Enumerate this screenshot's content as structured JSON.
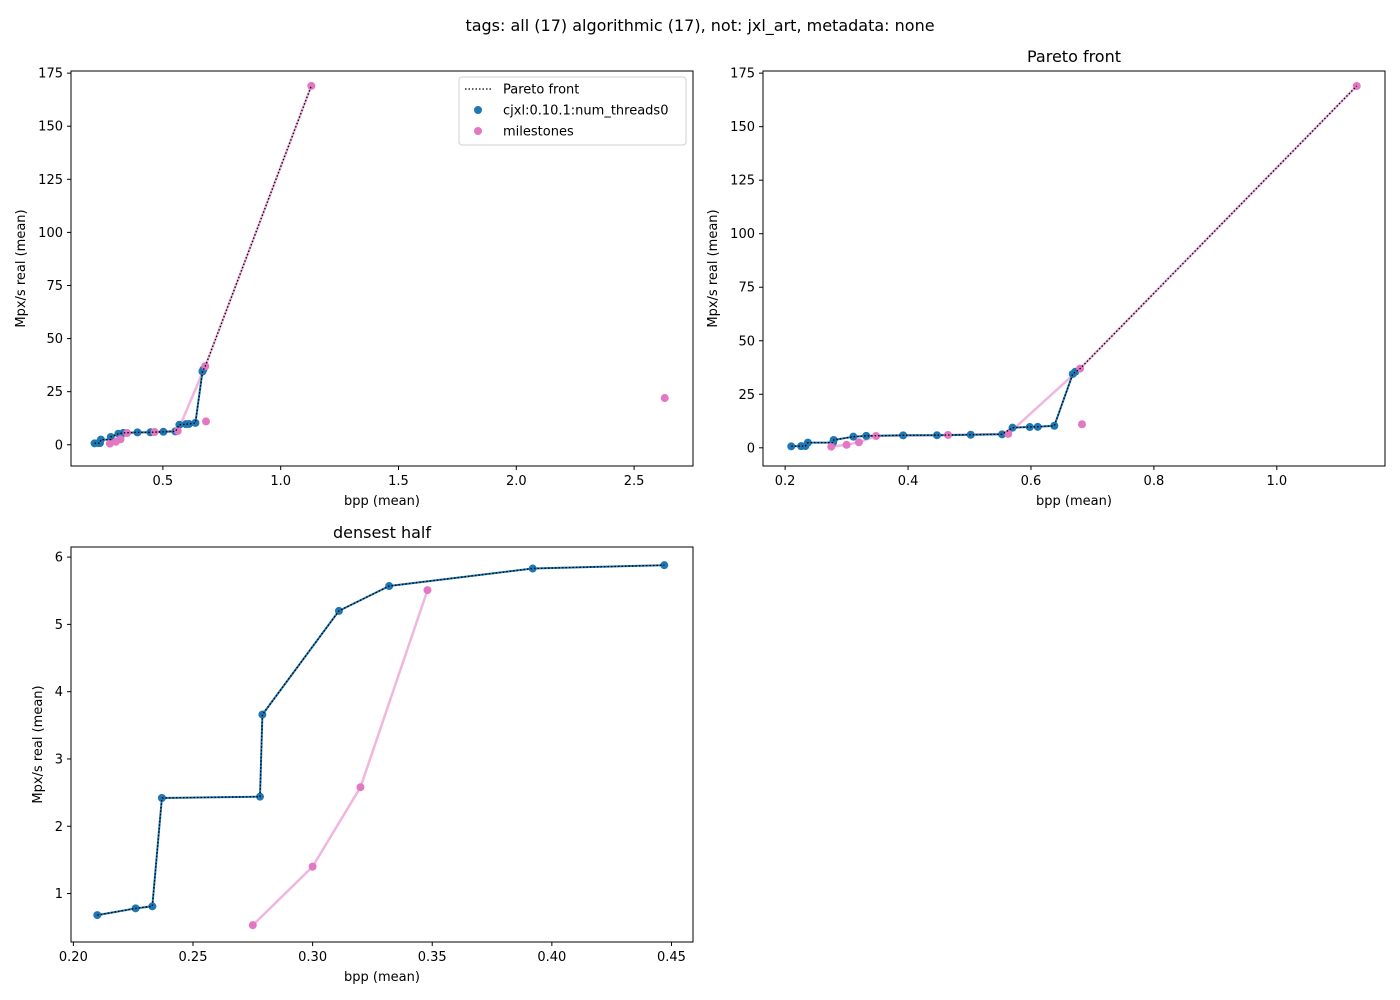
{
  "suptitle": "tags: all (17) algorithmic (17), not: jxl_art, metadata: none",
  "colors": {
    "series": "#1f77b4",
    "milestones": "#e377c2",
    "milestones_line": "#f0b6e0",
    "pareto": "#000000"
  },
  "legend": {
    "pareto": "Pareto front",
    "series": "cjxl:0.10.1:num_threads0",
    "milestones": "milestones"
  },
  "chart_data": [
    {
      "type": "scatter",
      "title": "",
      "xlabel": "bpp (mean)",
      "ylabel": "Mpx/s real (mean)",
      "xlim": [
        0.11,
        2.75
      ],
      "ylim": [
        -10,
        176
      ],
      "xticks": [
        0.5,
        1.0,
        1.5,
        2.0,
        2.5
      ],
      "xtick_labels": [
        "0.5",
        "1.0",
        "1.5",
        "2.0",
        "2.5"
      ],
      "yticks": [
        0,
        25,
        50,
        75,
        100,
        125,
        150,
        175
      ],
      "ytick_labels": [
        "0",
        "25",
        "50",
        "75",
        "100",
        "125",
        "150",
        "175"
      ],
      "legend_position": "upper right",
      "series": {
        "name": "cjxl:0.10.1:num_threads0",
        "x": [
          0.21,
          0.226,
          0.233,
          0.237,
          0.278,
          0.279,
          0.311,
          0.332,
          0.392,
          0.447,
          0.502,
          0.553,
          0.57,
          0.598,
          0.611,
          0.638,
          0.668,
          0.672
        ],
        "y": [
          0.68,
          0.78,
          0.81,
          2.42,
          2.44,
          3.66,
          5.2,
          5.57,
          5.83,
          5.88,
          6.1,
          6.3,
          9.4,
          9.7,
          9.8,
          10.3,
          34.5,
          35.5
        ]
      },
      "milestones": {
        "name": "milestones",
        "x": [
          0.275,
          0.3,
          0.32,
          0.348,
          0.465,
          0.563,
          0.68,
          1.13
        ],
        "y": [
          0.53,
          1.4,
          2.58,
          5.51,
          6.0,
          6.5,
          37.0,
          169.0
        ]
      },
      "milestones_extra": {
        "x": [
          0.683,
          2.63
        ],
        "y": [
          11.0,
          22.0
        ]
      },
      "pareto": {
        "x": [
          0.21,
          0.226,
          0.233,
          0.237,
          0.278,
          0.279,
          0.311,
          0.332,
          0.392,
          0.447,
          0.502,
          0.553,
          0.57,
          0.598,
          0.611,
          0.638,
          0.668,
          0.68,
          1.13
        ],
        "y": [
          0.68,
          0.78,
          0.81,
          2.42,
          2.44,
          3.66,
          5.2,
          5.57,
          5.83,
          5.88,
          6.1,
          6.3,
          9.4,
          9.7,
          9.8,
          10.3,
          34.5,
          37.0,
          169.0
        ]
      }
    },
    {
      "type": "scatter",
      "title": "Pareto front",
      "xlabel": "bpp (mean)",
      "ylabel": "Mpx/s real (mean)",
      "xlim": [
        0.164,
        1.176
      ],
      "ylim": [
        -8.5,
        176
      ],
      "xticks": [
        0.2,
        0.4,
        0.6,
        0.8,
        1.0
      ],
      "xtick_labels": [
        "0.2",
        "0.4",
        "0.6",
        "0.8",
        "1.0"
      ],
      "yticks": [
        0,
        25,
        50,
        75,
        100,
        125,
        150,
        175
      ],
      "ytick_labels": [
        "0",
        "25",
        "50",
        "75",
        "100",
        "125",
        "150",
        "175"
      ],
      "series": {
        "name": "cjxl:0.10.1:num_threads0",
        "x": [
          0.21,
          0.226,
          0.233,
          0.237,
          0.278,
          0.279,
          0.311,
          0.332,
          0.392,
          0.447,
          0.502,
          0.553,
          0.57,
          0.598,
          0.611,
          0.638,
          0.668,
          0.672
        ],
        "y": [
          0.68,
          0.78,
          0.81,
          2.42,
          2.44,
          3.66,
          5.2,
          5.57,
          5.83,
          5.88,
          6.1,
          6.3,
          9.4,
          9.7,
          9.8,
          10.3,
          34.5,
          35.5
        ]
      },
      "milestones": {
        "name": "milestones",
        "x": [
          0.275,
          0.3,
          0.32,
          0.348,
          0.465,
          0.563,
          0.68,
          1.13
        ],
        "y": [
          0.53,
          1.4,
          2.58,
          5.51,
          6.0,
          6.5,
          37.0,
          169.0
        ]
      },
      "milestones_extra": {
        "x": [
          0.683
        ],
        "y": [
          11.0
        ]
      },
      "pareto": {
        "x": [
          0.21,
          0.226,
          0.233,
          0.237,
          0.278,
          0.279,
          0.311,
          0.332,
          0.392,
          0.447,
          0.502,
          0.553,
          0.57,
          0.598,
          0.611,
          0.638,
          0.668,
          0.68,
          1.13
        ],
        "y": [
          0.68,
          0.78,
          0.81,
          2.42,
          2.44,
          3.66,
          5.2,
          5.57,
          5.83,
          5.88,
          6.1,
          6.3,
          9.4,
          9.7,
          9.8,
          10.3,
          34.5,
          37.0,
          169.0
        ]
      }
    },
    {
      "type": "scatter",
      "title": "densest half",
      "xlabel": "bpp (mean)",
      "ylabel": "Mpx/s real (mean)",
      "xlim": [
        0.199,
        0.459
      ],
      "ylim": [
        0.28,
        6.15
      ],
      "xticks": [
        0.2,
        0.25,
        0.3,
        0.35,
        0.4,
        0.45
      ],
      "xtick_labels": [
        "0.20",
        "0.25",
        "0.30",
        "0.35",
        "0.40",
        "0.45"
      ],
      "yticks": [
        1,
        2,
        3,
        4,
        5,
        6
      ],
      "ytick_labels": [
        "1",
        "2",
        "3",
        "4",
        "5",
        "6"
      ],
      "series": {
        "name": "cjxl:0.10.1:num_threads0",
        "x": [
          0.21,
          0.226,
          0.233,
          0.237,
          0.278,
          0.279,
          0.311,
          0.332,
          0.392,
          0.447
        ],
        "y": [
          0.68,
          0.78,
          0.81,
          2.42,
          2.44,
          3.66,
          5.2,
          5.57,
          5.83,
          5.88
        ]
      },
      "milestones": {
        "name": "milestones",
        "x": [
          0.275,
          0.3,
          0.32,
          0.348
        ],
        "y": [
          0.53,
          1.4,
          2.58,
          5.51
        ]
      },
      "milestones_extra": {
        "x": [],
        "y": []
      },
      "pareto": {
        "x": [
          0.21,
          0.226,
          0.233,
          0.237,
          0.278,
          0.279,
          0.311,
          0.332,
          0.392,
          0.447
        ],
        "y": [
          0.68,
          0.78,
          0.81,
          2.42,
          2.44,
          3.66,
          5.2,
          5.57,
          5.83,
          5.88
        ]
      }
    }
  ]
}
